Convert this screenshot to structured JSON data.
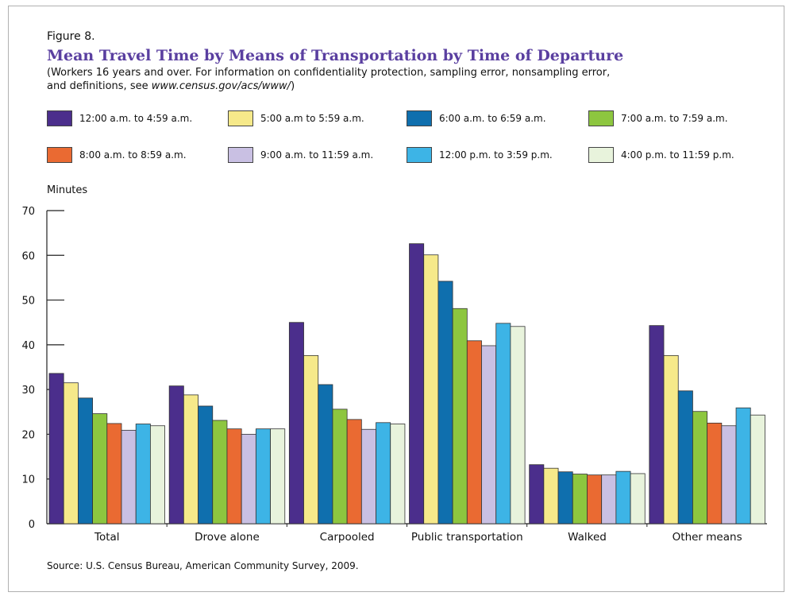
{
  "figure_label": "Figure 8.",
  "title": "Mean Travel Time by Means of Transportation by Time of Departure",
  "subtitle_line1": "(Workers 16 years and over. For information on confidentiality protection, sampling error, nonsampling error,",
  "subtitle_line2_prefix": "and definitions, see ",
  "subtitle_url": "www.census.gov/acs/www/",
  "subtitle_line2_suffix": ")",
  "source": "Source:  U.S. Census Bureau, American Community Survey, 2009.",
  "chart_data": {
    "type": "bar",
    "ylabel": "Minutes",
    "ylim": [
      0,
      70
    ],
    "yticks": [
      "0",
      "10",
      "20",
      "30",
      "40",
      "50",
      "60",
      "70"
    ],
    "grid": false,
    "legend_position": "top",
    "categories": [
      "Total",
      "Drove alone",
      "Carpooled",
      "Public transportation",
      "Walked",
      "Other means"
    ],
    "series": [
      {
        "name": "12:00 a.m. to 4:59 a.m.",
        "color": "#4b2e8c",
        "values": [
          33.6,
          30.8,
          45.0,
          62.6,
          13.2,
          44.3
        ]
      },
      {
        "name": "5:00 a.m to 5:59 a.m.",
        "color": "#f6e98a",
        "values": [
          31.5,
          28.8,
          37.6,
          60.1,
          12.4,
          37.6
        ]
      },
      {
        "name": "6:00 a.m. to 6:59 a.m.",
        "color": "#0f6fae",
        "values": [
          28.1,
          26.3,
          31.1,
          54.2,
          11.6,
          29.7
        ]
      },
      {
        "name": "7:00 a.m. to 7:59 a.m.",
        "color": "#8dc63f",
        "values": [
          24.6,
          23.1,
          25.6,
          48.1,
          11.1,
          25.1
        ]
      },
      {
        "name": "8:00 a.m. to 8:59 a.m.",
        "color": "#ea6a32",
        "values": [
          22.4,
          21.2,
          23.3,
          40.9,
          10.9,
          22.5
        ]
      },
      {
        "name": "9:00 a.m. to 11:59 a.m.",
        "color": "#c9c0e3",
        "values": [
          20.9,
          20.0,
          21.1,
          39.8,
          10.9,
          21.9
        ]
      },
      {
        "name": "12:00 p.m. to 3:59 p.m.",
        "color": "#3db4e6",
        "values": [
          22.3,
          21.2,
          22.6,
          44.8,
          11.7,
          25.9
        ]
      },
      {
        "name": "4:00 p.m. to 11:59 p.m.",
        "color": "#e8f3dc",
        "values": [
          21.9,
          21.2,
          22.3,
          44.1,
          11.2,
          24.3
        ]
      }
    ]
  }
}
